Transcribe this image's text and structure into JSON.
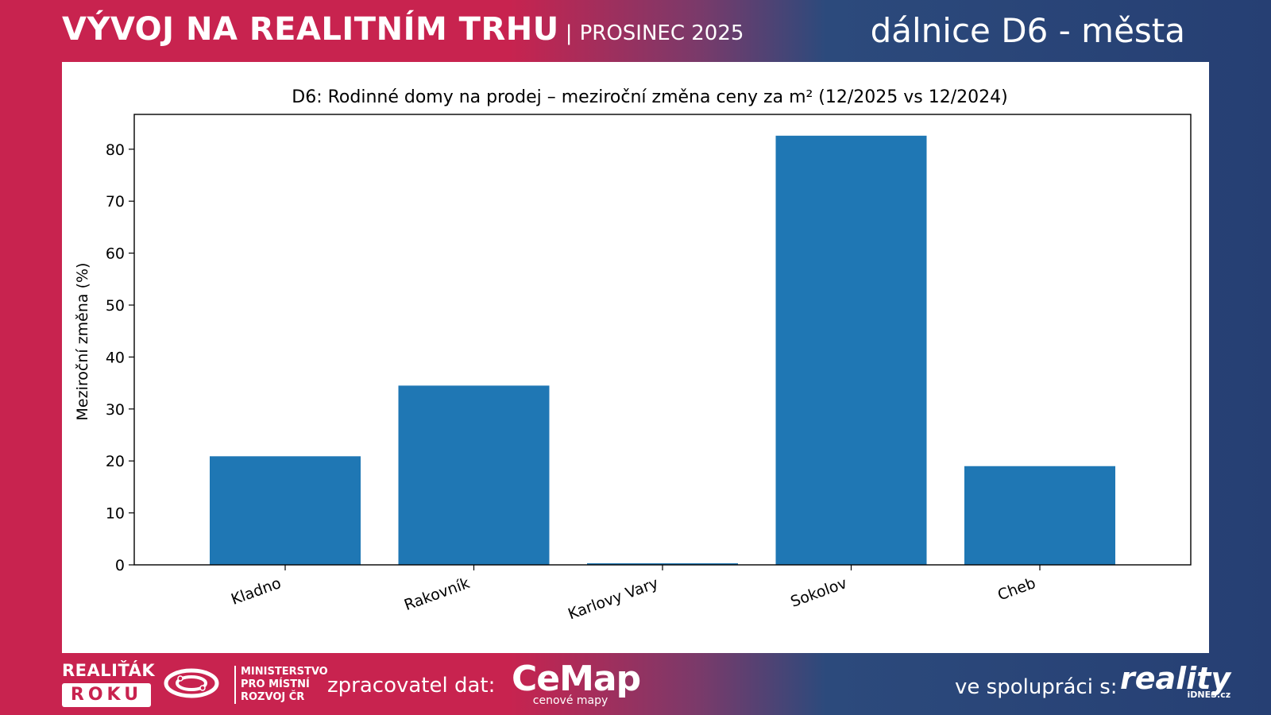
{
  "header": {
    "title": "VÝVOJ NA REALITNÍM TRHU",
    "separator": "|",
    "subtitle": "PROSINEC 2025",
    "right_title": "dálnice D6 - města"
  },
  "footer": {
    "realitak_line1": "REALIŤÁK",
    "realitak_line2": "ROKU",
    "ministry_line1": "MINISTERSTVO",
    "ministry_line2": "PRO MÍSTNÍ",
    "ministry_line3": "ROZVOJ ČR",
    "processor_label": "zpracovatel dat:",
    "cemap_name": "CeMap",
    "cemap_tag": "cenové mapy",
    "partner_label": "ve spolupráci s:",
    "reality_name": "reality",
    "reality_tag": "iDNES.cz"
  },
  "colors": {
    "brand_red": "#c8234f",
    "brand_blue": "#263f73",
    "bar": "#1f77b4"
  },
  "chart_data": {
    "type": "bar",
    "title": "D6: Rodinné domy na prodej – meziroční změna ceny za m² (12/2025 vs 12/2024)",
    "xlabel": "",
    "ylabel": "Meziroční změna (%)",
    "categories": [
      "Kladno",
      "Rakovník",
      "Karlovy Vary",
      "Sokolov",
      "Cheb"
    ],
    "values": [
      20.9,
      34.5,
      0.3,
      82.6,
      19.0
    ],
    "ylim": [
      0,
      86.7
    ],
    "yticks": [
      0,
      10,
      20,
      30,
      40,
      50,
      60,
      70,
      80
    ],
    "grid": false
  }
}
